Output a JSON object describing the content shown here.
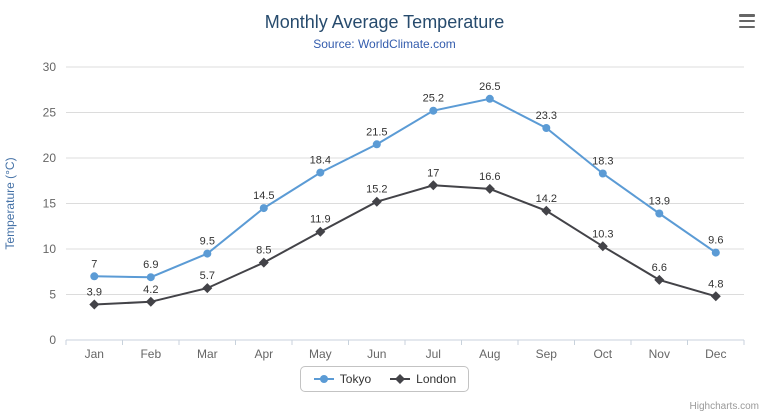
{
  "chart_data": {
    "type": "line",
    "title": "Monthly Average Temperature",
    "subtitle": "Source: WorldClimate.com",
    "categories": [
      "Jan",
      "Feb",
      "Mar",
      "Apr",
      "May",
      "Jun",
      "Jul",
      "Aug",
      "Sep",
      "Oct",
      "Nov",
      "Dec"
    ],
    "series": [
      {
        "name": "Tokyo",
        "color": "#5b9bd5",
        "marker": "circle",
        "values": [
          7,
          6.9,
          9.5,
          14.5,
          18.4,
          21.5,
          25.2,
          26.5,
          23.3,
          18.3,
          13.9,
          9.6
        ]
      },
      {
        "name": "London",
        "color": "#434348",
        "marker": "diamond",
        "values": [
          3.9,
          4.2,
          5.7,
          8.5,
          11.9,
          15.2,
          17,
          16.6,
          14.2,
          10.3,
          6.6,
          4.8
        ]
      }
    ],
    "xlabel": "",
    "ylabel": "Temperature (°C)",
    "ylim": [
      0,
      30
    ],
    "ytick_interval": 5,
    "grid": true,
    "legend_position": "bottom",
    "data_labels": true
  },
  "credits": "Highcharts.com",
  "context_menu": {
    "icon": "hamburger-menu-icon"
  },
  "colors": {
    "title": "#274b6d",
    "subtitle": "#335cad",
    "axis_title": "#4572a7",
    "tick": "#666666",
    "data_label": "#333333",
    "grid": "#dcdcdc",
    "axis_line": "#c8d2dc",
    "legend_border": "#c3c3c3",
    "credits": "#999999"
  }
}
